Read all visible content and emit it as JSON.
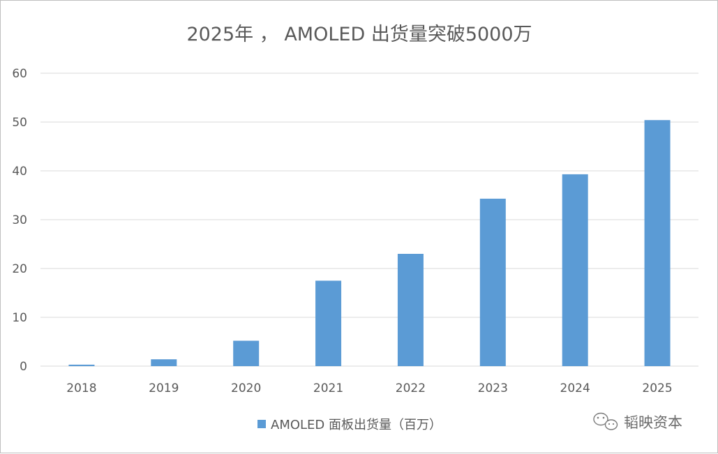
{
  "chart_data": {
    "type": "bar",
    "title": "2025年 ， AMOLED 出货量突破5000万",
    "categories": [
      "2018",
      "2019",
      "2020",
      "2021",
      "2022",
      "2023",
      "2024",
      "2025"
    ],
    "series": [
      {
        "name": "AMOLED 面板出货量（百万）",
        "values": [
          0.3,
          1.4,
          5.2,
          17.5,
          23.0,
          34.3,
          39.3,
          50.4
        ],
        "color": "#5b9bd5"
      }
    ],
    "ylim": [
      0,
      60
    ],
    "yticks": [
      "0",
      "10",
      "20",
      "30",
      "40",
      "50",
      "60"
    ],
    "grid": true,
    "legend_position": "bottom"
  },
  "watermark": {
    "text": "韬映资本",
    "icon": "wechat-icon"
  }
}
